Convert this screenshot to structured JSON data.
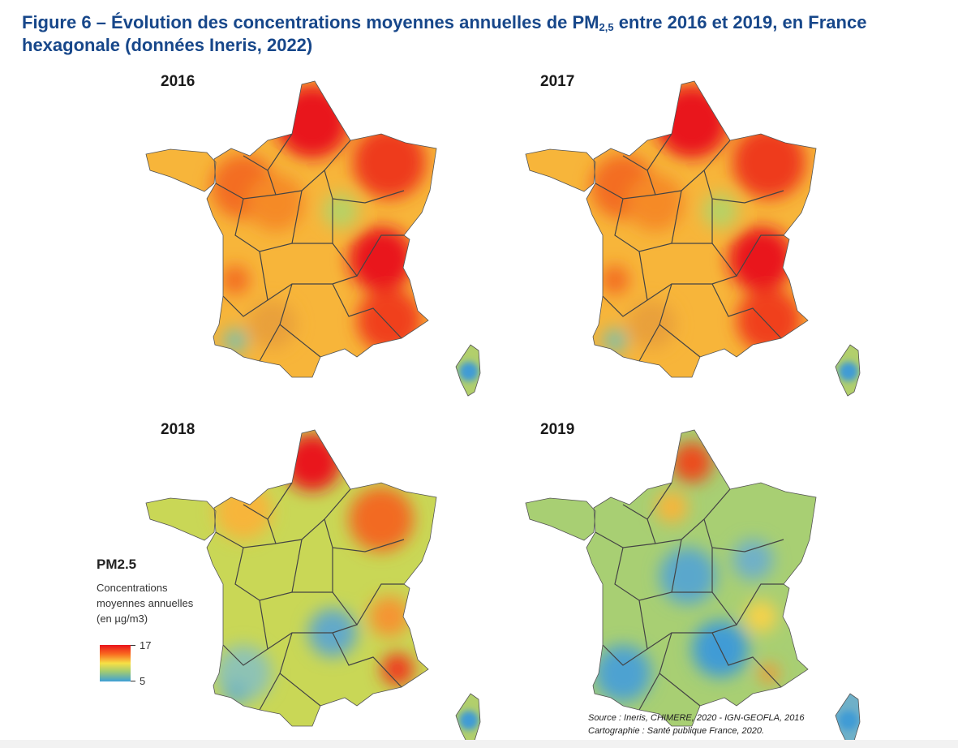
{
  "figure": {
    "title_main": "Figure 6 – Évolution des concentrations moyennes annuelles de PM",
    "title_sub": "2,5",
    "title_rest": " entre 2016 et 2019, en France",
    "title_line2": "hexagonale (données Ineris, 2022)"
  },
  "maps": [
    {
      "year": "2016",
      "level": "high"
    },
    {
      "year": "2017",
      "level": "high"
    },
    {
      "year": "2018",
      "level": "medium"
    },
    {
      "year": "2019",
      "level": "low"
    }
  ],
  "legend": {
    "title": "PM2.5",
    "desc_line1": "Concentrations",
    "desc_line2": "moyennes annuelles",
    "desc_line3": "(en µg/m3)",
    "max_value": "17",
    "min_value": "5",
    "color_max": "#e9131b",
    "color_mid": "#f7e046",
    "color_min": "#3d9fd6"
  },
  "source": {
    "line1": "Source : Ineris, CHIMERE, 2020 - IGN-GEOFLA, 2016",
    "line2": "Cartographie : Santé publique France, 2020."
  }
}
